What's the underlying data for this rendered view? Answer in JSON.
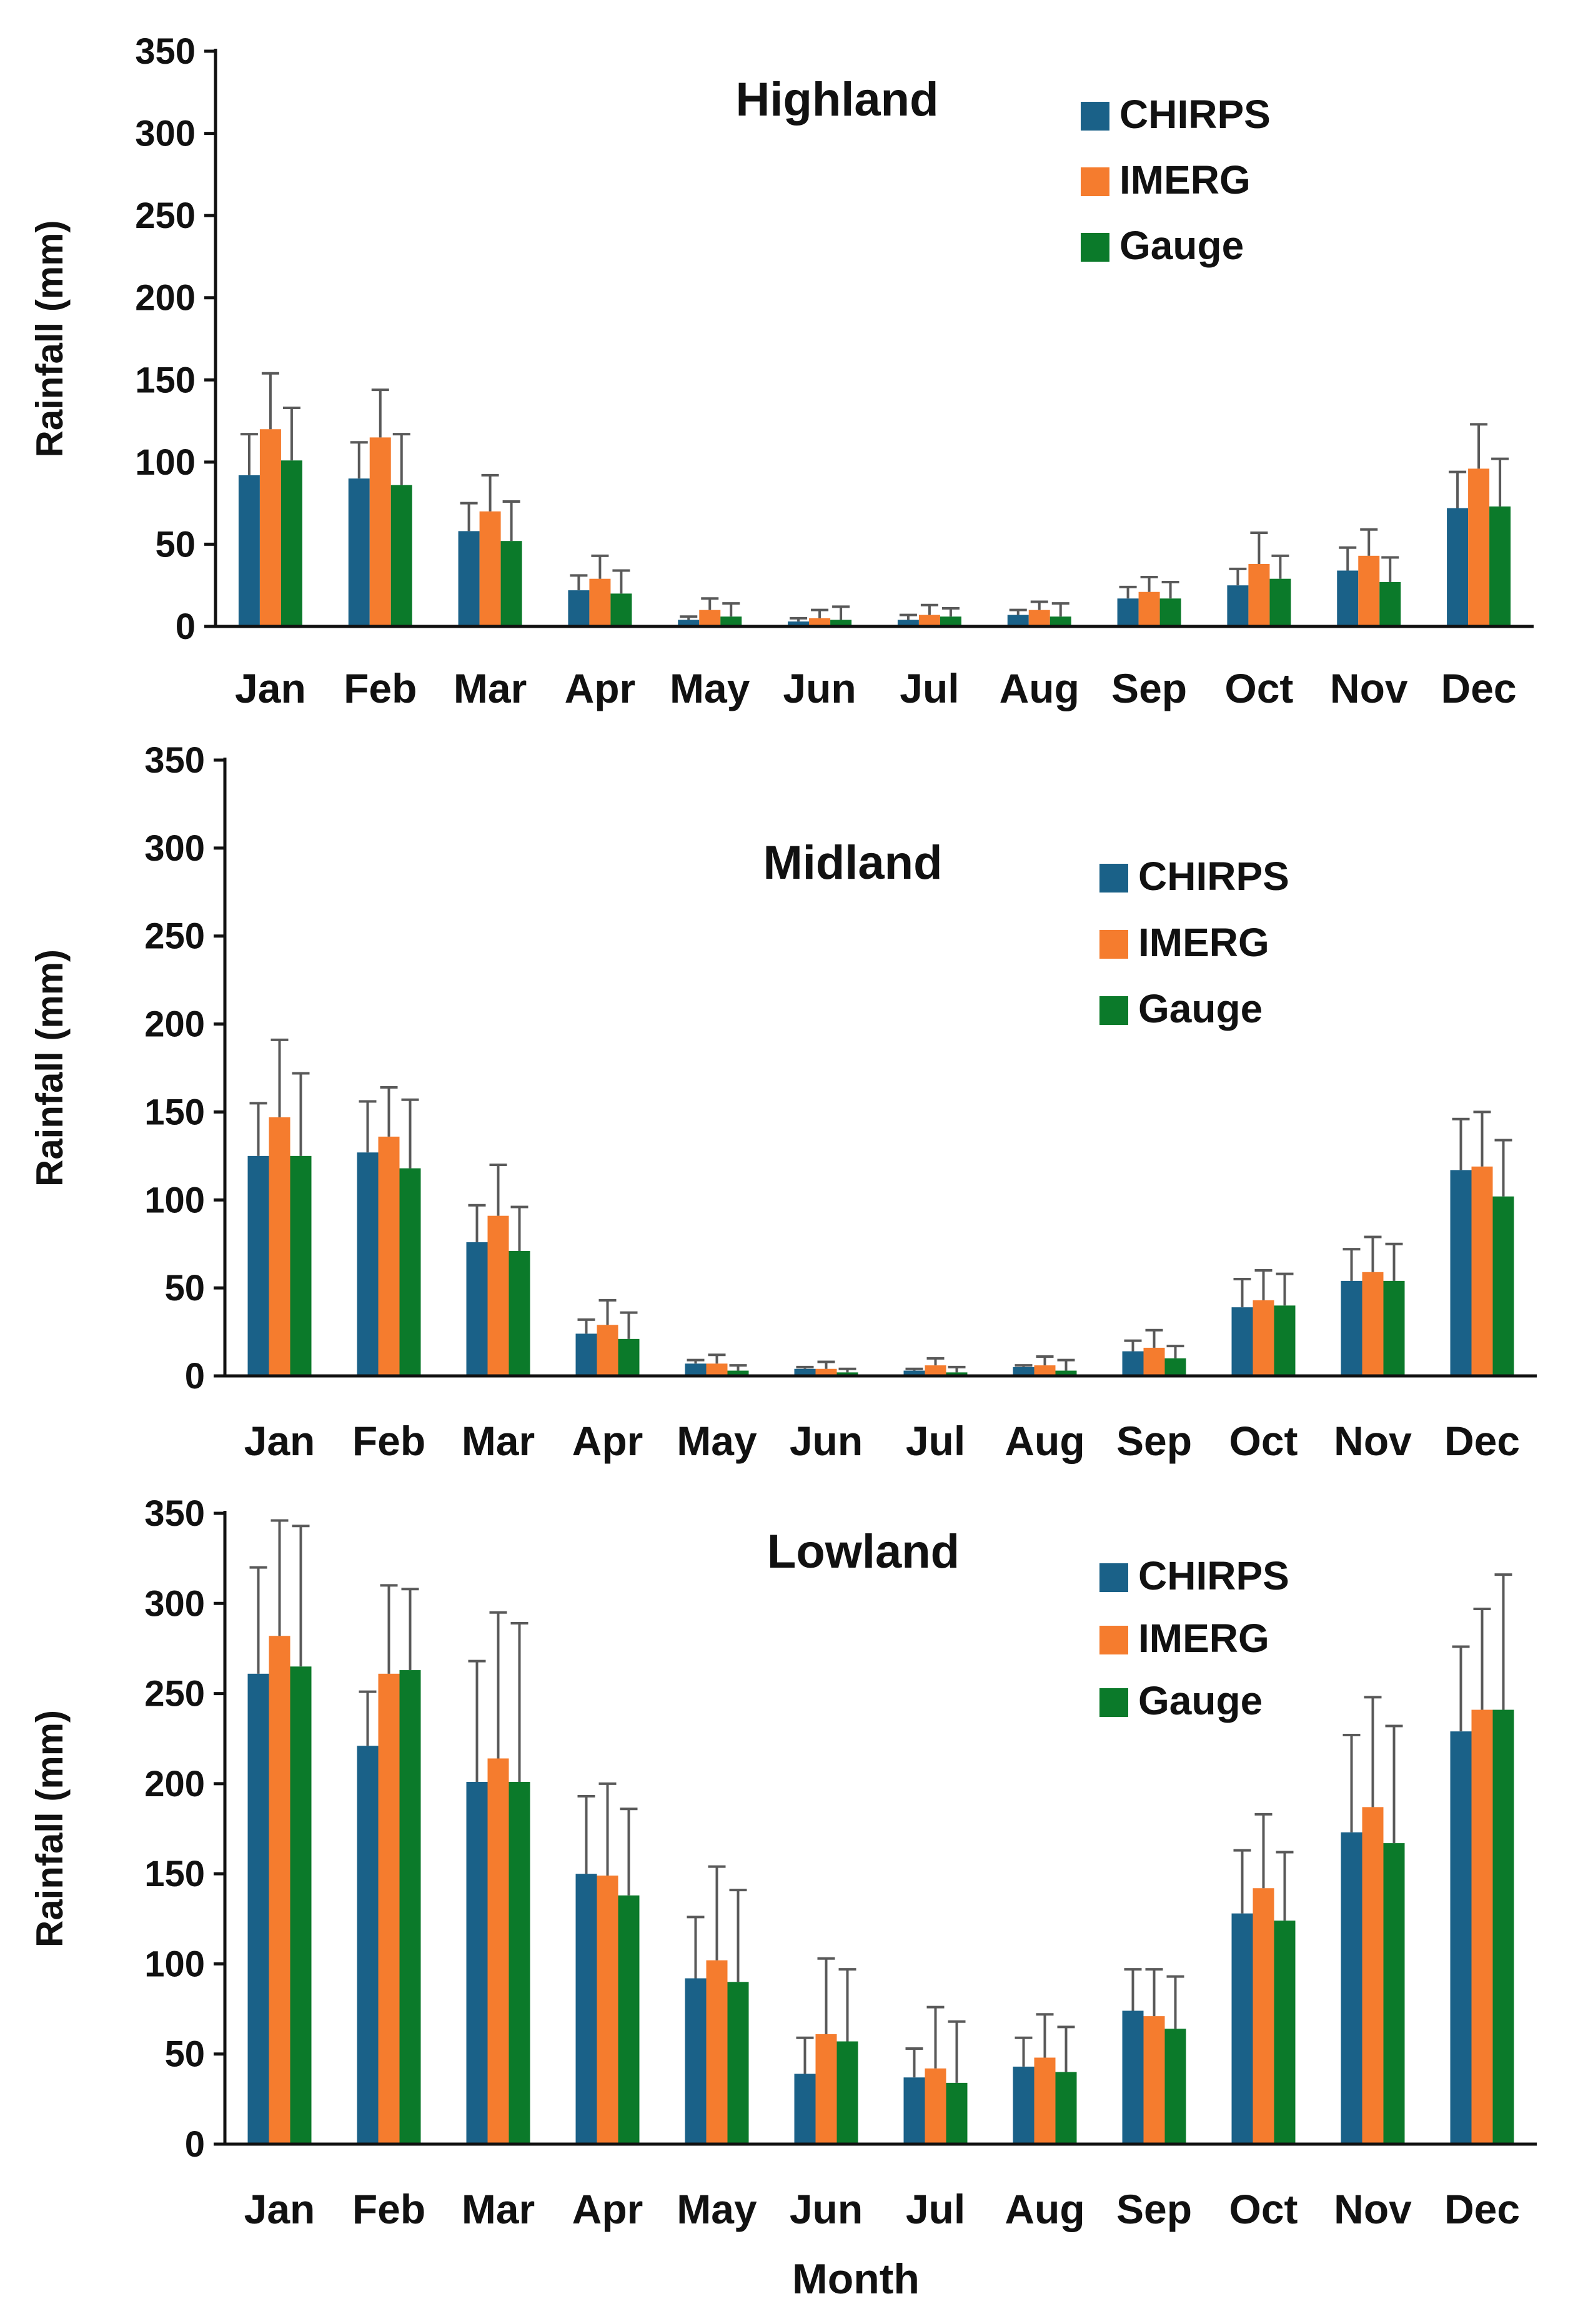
{
  "figure": {
    "x_axis_title": "Month",
    "y_axis_title": "Rainfall (mm)",
    "legend": [
      "CHIRPS",
      "IMERG",
      "Gauge"
    ],
    "colors": {
      "CHIRPS": "#1a6188",
      "IMERG": "#f57c2e",
      "Gauge": "#0b7a2a"
    }
  },
  "chart_data": [
    {
      "type": "bar",
      "title": "Highland",
      "ylabel": "Rainfall (mm)",
      "ylim": [
        0,
        350
      ],
      "yticks": [
        0,
        50,
        100,
        150,
        200,
        250,
        300,
        350
      ],
      "categories": [
        "Jan",
        "Feb",
        "Mar",
        "Apr",
        "May",
        "Jun",
        "Jul",
        "Aug",
        "Sep",
        "Oct",
        "Nov",
        "Dec"
      ],
      "legend_position": "top-right",
      "series": [
        {
          "name": "CHIRPS",
          "color": "#1a6188",
          "values": [
            92,
            90,
            58,
            22,
            4,
            3,
            4,
            7,
            17,
            25,
            34,
            72
          ],
          "error": [
            25,
            22,
            17,
            9,
            2,
            2,
            3,
            3,
            7,
            10,
            14,
            22
          ]
        },
        {
          "name": "IMERG",
          "color": "#f57c2e",
          "values": [
            120,
            115,
            70,
            29,
            10,
            5,
            7,
            10,
            21,
            38,
            43,
            96
          ],
          "error": [
            34,
            29,
            22,
            14,
            7,
            5,
            6,
            5,
            9,
            19,
            16,
            27
          ]
        },
        {
          "name": "Gauge",
          "color": "#0b7a2a",
          "values": [
            101,
            86,
            52,
            20,
            6,
            4,
            6,
            6,
            17,
            29,
            27,
            73
          ],
          "error": [
            32,
            31,
            24,
            14,
            8,
            8,
            5,
            8,
            10,
            14,
            15,
            29
          ]
        }
      ]
    },
    {
      "type": "bar",
      "title": "Midland",
      "ylabel": "Rainfall (mm)",
      "ylim": [
        0,
        350
      ],
      "yticks": [
        0,
        50,
        100,
        150,
        200,
        250,
        300,
        350
      ],
      "categories": [
        "Jan",
        "Feb",
        "Mar",
        "Apr",
        "May",
        "Jun",
        "Jul",
        "Aug",
        "Sep",
        "Oct",
        "Nov",
        "Dec"
      ],
      "legend_position": "top-right",
      "series": [
        {
          "name": "CHIRPS",
          "color": "#1a6188",
          "values": [
            125,
            127,
            76,
            24,
            7,
            4,
            3,
            5,
            14,
            39,
            54,
            117
          ],
          "error": [
            30,
            29,
            21,
            8,
            2,
            1,
            1,
            1,
            6,
            16,
            18,
            29
          ]
        },
        {
          "name": "IMERG",
          "color": "#f57c2e",
          "values": [
            147,
            136,
            91,
            29,
            7,
            4,
            6,
            6,
            16,
            43,
            59,
            119
          ],
          "error": [
            44,
            28,
            29,
            14,
            5,
            4,
            4,
            5,
            10,
            17,
            20,
            31
          ]
        },
        {
          "name": "Gauge",
          "color": "#0b7a2a",
          "values": [
            125,
            118,
            71,
            21,
            3,
            2,
            2,
            3,
            10,
            40,
            54,
            102
          ],
          "error": [
            47,
            39,
            25,
            15,
            3,
            2,
            3,
            6,
            7,
            18,
            21,
            32
          ]
        }
      ]
    },
    {
      "type": "bar",
      "title": "Lowland",
      "ylabel": "Rainfall (mm)",
      "xlabel": "Month",
      "ylim": [
        0,
        350
      ],
      "yticks": [
        0,
        50,
        100,
        150,
        200,
        250,
        300,
        350
      ],
      "categories": [
        "Jan",
        "Feb",
        "Mar",
        "Apr",
        "May",
        "Jun",
        "Jul",
        "Aug",
        "Sep",
        "Oct",
        "Nov",
        "Dec"
      ],
      "legend_position": "top-right",
      "series": [
        {
          "name": "CHIRPS",
          "color": "#1a6188",
          "values": [
            261,
            221,
            201,
            150,
            92,
            39,
            37,
            43,
            74,
            128,
            173,
            229
          ],
          "error": [
            59,
            30,
            67,
            43,
            34,
            20,
            16,
            16,
            23,
            35,
            54,
            47
          ]
        },
        {
          "name": "IMERG",
          "color": "#f57c2e",
          "values": [
            282,
            261,
            214,
            149,
            102,
            61,
            42,
            48,
            71,
            142,
            187,
            241
          ],
          "error": [
            64,
            49,
            81,
            51,
            52,
            42,
            34,
            24,
            26,
            41,
            61,
            56
          ]
        },
        {
          "name": "Gauge",
          "color": "#0b7a2a",
          "values": [
            265,
            263,
            201,
            138,
            90,
            57,
            34,
            40,
            64,
            124,
            167,
            241
          ],
          "error": [
            78,
            45,
            88,
            48,
            51,
            40,
            34,
            25,
            29,
            38,
            65,
            75
          ]
        }
      ]
    }
  ]
}
